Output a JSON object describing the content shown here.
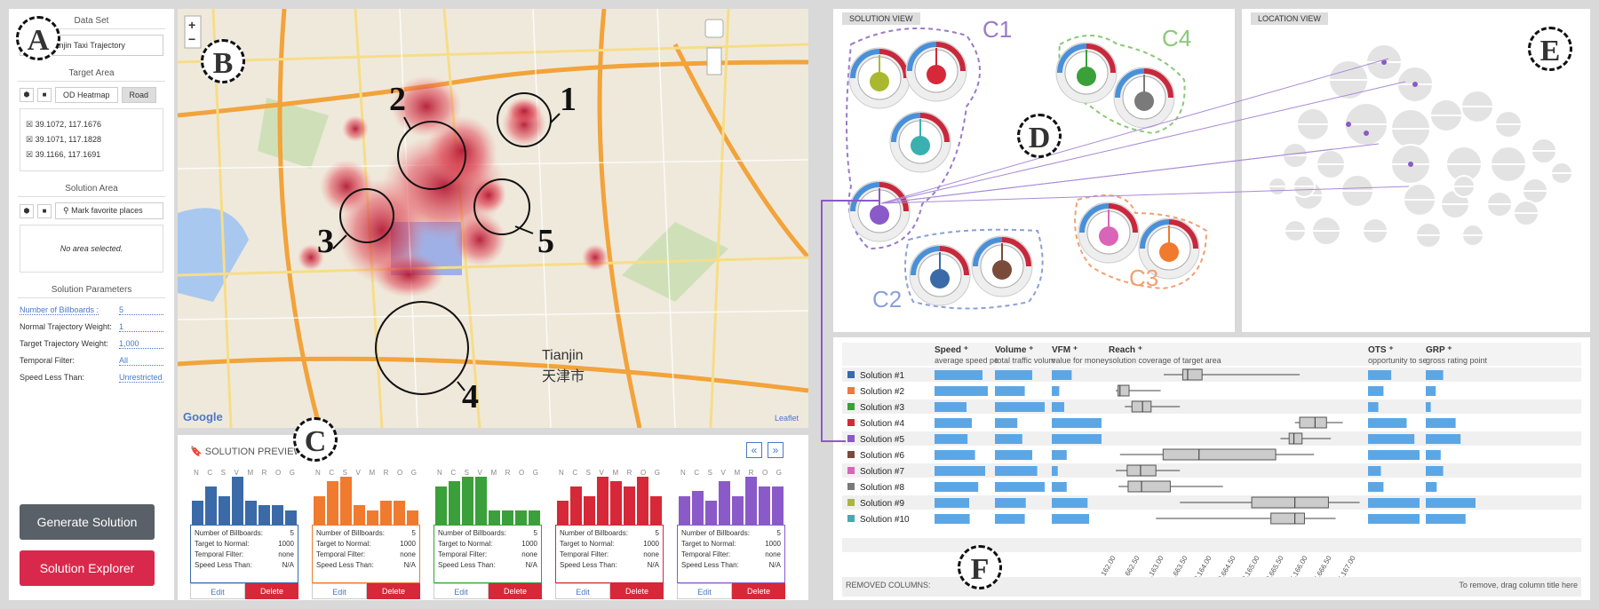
{
  "left": {
    "data_set_title": "Data Set",
    "data_set_value": "Using Tianjin Taxi Trajectory",
    "target_area_title": "Target Area",
    "od_heatmap": "OD Heatmap",
    "road": "Road",
    "coords": [
      "39.1072, 117.1676",
      "39.1071, 117.1828",
      "39.1166, 117.1691"
    ],
    "solution_area_title": "Solution Area",
    "mark_places": "Mark favorite places",
    "no_area": "No area selected.",
    "params_title": "Solution Parameters",
    "params": [
      {
        "label": "Number of Billboards :",
        "value": "5"
      },
      {
        "label": "Normal Trajectory Weight:",
        "value": "1"
      },
      {
        "label": "Target Trajectory Weight:",
        "value": "1,000"
      },
      {
        "label": "Temporal Filter:",
        "value": "All"
      },
      {
        "label": "Speed Less Than:",
        "value": "Unrestricted"
      }
    ],
    "generate": "Generate Solution",
    "explorer": "Solution Explorer"
  },
  "markers": {
    "a": "A",
    "b": "B",
    "c": "C",
    "d": "D",
    "e": "E",
    "f": "F"
  },
  "map": {
    "labels": [
      "1",
      "2",
      "3",
      "4",
      "5"
    ],
    "city": "Tianjin",
    "city_cn": "天津市",
    "google": "Google",
    "leaflet": "Leaflet",
    "plus": "+",
    "minus": "−"
  },
  "preview": {
    "title": "SOLUTION PREVIEW",
    "letters": [
      "N",
      "C",
      "S",
      "V",
      "M",
      "R",
      "O",
      "G"
    ],
    "cards": [
      {
        "color": "#3a6aa8",
        "heights": [
          0.5,
          0.8,
          0.6,
          1.0,
          0.5,
          0.4,
          0.4,
          0.3
        ]
      },
      {
        "color": "#f07a2e",
        "heights": [
          0.6,
          0.9,
          1.0,
          0.4,
          0.3,
          0.5,
          0.5,
          0.3
        ]
      },
      {
        "color": "#3aa03a",
        "heights": [
          0.8,
          0.9,
          1.0,
          1.0,
          0.3,
          0.3,
          0.3,
          0.3
        ]
      },
      {
        "color": "#d62838",
        "heights": [
          0.5,
          0.8,
          0.6,
          1.0,
          0.9,
          0.8,
          1.0,
          0.6
        ]
      },
      {
        "color": "#8a5ac8",
        "heights": [
          0.6,
          0.7,
          0.5,
          0.9,
          0.6,
          1.0,
          0.8,
          0.8
        ]
      }
    ],
    "rows": [
      {
        "k": "Number of Billboards:",
        "v": "5"
      },
      {
        "k": "Target to Normal:",
        "v": "1000"
      },
      {
        "k": "Temporal Filter:",
        "v": "none"
      },
      {
        "k": "Speed Less Than:",
        "v": "N/A"
      }
    ],
    "edit": "Edit",
    "delete": "Delete",
    "prev": "«",
    "next": "»"
  },
  "solution_view": {
    "title": "SOLUTION VIEW",
    "clusters": [
      "C1",
      "C2",
      "C3",
      "C4"
    ]
  },
  "location_view": {
    "title": "LOCATION VIEW"
  },
  "table": {
    "columns": [
      {
        "name": "Speed",
        "sub": "average speed pe"
      },
      {
        "name": "Volume",
        "sub": "total traffic volum"
      },
      {
        "name": "VFM",
        "sub": "value for money"
      },
      {
        "name": "Reach",
        "sub": "solution coverage of target area"
      },
      {
        "name": "OTS",
        "sub": "opportunity to se"
      },
      {
        "name": "GRP",
        "sub": "gross rating point"
      }
    ],
    "solutions": [
      {
        "name": "Solution #1",
        "color": "#3a6aa8",
        "speed": 0.9,
        "volume": 0.75,
        "vfm": 0.4,
        "grp": 0.35,
        "ots": 0.45,
        "box": [
          1163,
          1560,
          1663,
          1963,
          4000
        ]
      },
      {
        "name": "Solution #2",
        "color": "#f07a2e",
        "speed": 1.0,
        "volume": 0.6,
        "vfm": 0.15,
        "grp": 0.2,
        "ots": 0.3,
        "box": [
          162,
          210,
          250,
          440,
          1100
        ]
      },
      {
        "name": "Solution #3",
        "color": "#3aa03a",
        "speed": 0.6,
        "volume": 1.0,
        "vfm": 0.25,
        "grp": 0.1,
        "ots": 0.2,
        "box": [
          350,
          500,
          720,
          900,
          1500
        ]
      },
      {
        "name": "Solution #4",
        "color": "#d62838",
        "speed": 0.7,
        "volume": 0.45,
        "vfm": 1.0,
        "grp": 0.6,
        "ots": 0.75,
        "box": [
          3900,
          4000,
          4320,
          4560,
          4900
        ]
      },
      {
        "name": "Solution #5",
        "color": "#8a5ac8",
        "speed": 0.62,
        "volume": 0.55,
        "vfm": 1.0,
        "grp": 0.7,
        "ots": 0.9,
        "box": [
          3600,
          3780,
          3880,
          4050,
          4650
        ]
      },
      {
        "name": "Solution #6",
        "color": "#7a4a3a",
        "speed": 0.76,
        "volume": 0.75,
        "vfm": 0.3,
        "grp": 0.3,
        "ots": 1.0,
        "box": [
          250,
          1150,
          1900,
          3500,
          4300
        ]
      },
      {
        "name": "Solution #7",
        "color": "#d865b8",
        "speed": 0.95,
        "volume": 0.85,
        "vfm": 0.12,
        "grp": 0.35,
        "ots": 0.25,
        "box": [
          162,
          400,
          680,
          1000,
          1500
        ]
      },
      {
        "name": "Solution #8",
        "color": "#7a7a7a",
        "speed": 0.82,
        "volume": 1.0,
        "vfm": 0.3,
        "grp": 0.22,
        "ots": 0.3,
        "box": [
          220,
          420,
          700,
          1300,
          2400
        ]
      },
      {
        "name": "Solution #9",
        "color": "#aab830",
        "speed": 0.65,
        "volume": 0.62,
        "vfm": 0.72,
        "grp": 1.0,
        "ots": 1.0,
        "box": [
          1500,
          3000,
          3900,
          4600,
          5250
        ]
      },
      {
        "name": "Solution #10",
        "color": "#3ab0b0",
        "speed": 0.66,
        "volume": 0.6,
        "vfm": 0.75,
        "grp": 0.8,
        "ots": 1.0,
        "box": [
          1000,
          3400,
          3900,
          4100,
          4750
        ]
      }
    ],
    "axis_ticks": [
      "162.00",
      "662.50",
      "1,163.00",
      "1,663.50",
      "2,164.00",
      "2,664.50",
      "3,165.00",
      "3,665.50",
      "4,166.00",
      "4,666.50",
      "5,167.00"
    ],
    "removed_columns": "REMOVED COLUMNS:",
    "remove_hint": "To remove, drag column title here"
  }
}
